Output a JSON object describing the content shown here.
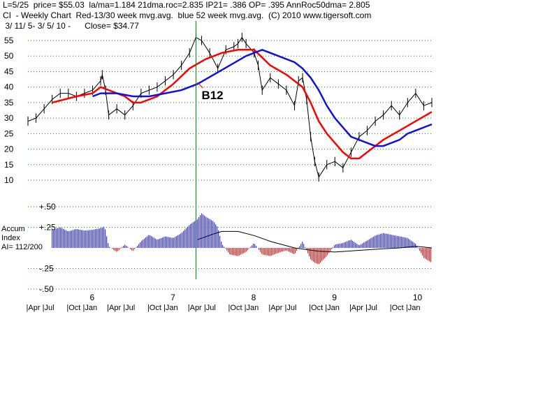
{
  "header": {
    "line1": "L=5/25  price= $55.03  la/ma=1.184 21dma.roc=2.835 IP21= .386 OP= .395 AnnRoc50dma= 2.805",
    "line2": "CI  - Weekly Chart  Red-13/30 week mvg.avg.  blue 52 week mvg.avg.  (C) 2010 www.tigersoft.com",
    "line3": " 3/ 11/ 5- 3/ 5/ 10 -      Close= $34.77"
  },
  "annotation": {
    "signal": "B12"
  },
  "panel_label": {
    "line1": "Accum",
    "line2": "Index",
    "line3": "AI= 112/200"
  },
  "colors": {
    "price": "#000000",
    "ma13": "#ff0000",
    "ma30": "#e00000",
    "ma52": "#1010e0",
    "grid": "#00a000",
    "signal_line": "#008000",
    "accum_pos": "#1010d0",
    "accum_neg": "#d00000"
  },
  "chart_data": [
    {
      "type": "line",
      "title": "CI - Weekly Chart",
      "ylim": [
        5,
        57
      ],
      "yticks": [
        10,
        15,
        20,
        25,
        30,
        35,
        40,
        45,
        50,
        55
      ],
      "xlim": [
        2005.2,
        2010.2
      ],
      "grid": true,
      "series": [
        {
          "name": "price",
          "x": [
            2005.2,
            2005.3,
            2005.4,
            2005.5,
            2005.6,
            2005.7,
            2005.8,
            2005.9,
            2006.0,
            2006.1,
            2006.12,
            2006.16,
            2006.2,
            2006.3,
            2006.4,
            2006.5,
            2006.6,
            2006.7,
            2006.8,
            2006.9,
            2007.0,
            2007.1,
            2007.2,
            2007.28,
            2007.35,
            2007.45,
            2007.55,
            2007.65,
            2007.75,
            2007.8,
            2007.85,
            2007.9,
            2008.0,
            2008.05,
            2008.1,
            2008.2,
            2008.3,
            2008.4,
            2008.5,
            2008.55,
            2008.6,
            2008.65,
            2008.7,
            2008.75,
            2008.8,
            2008.9,
            2009.0,
            2009.1,
            2009.2,
            2009.3,
            2009.4,
            2009.5,
            2009.6,
            2009.7,
            2009.8,
            2009.9,
            2010.0,
            2010.1,
            2010.2
          ],
          "values": [
            29,
            30,
            33,
            36,
            38,
            38,
            37,
            38,
            39,
            42,
            44,
            39,
            31,
            33,
            31,
            34,
            38,
            39,
            40,
            42,
            44,
            47,
            51,
            56,
            55,
            51,
            46,
            52,
            53,
            54,
            56,
            54,
            51,
            47,
            39,
            43,
            41,
            39,
            34,
            42,
            43,
            36,
            24,
            16,
            11,
            15,
            16,
            14,
            19,
            24,
            26,
            29,
            31,
            34,
            31,
            35,
            38,
            34,
            35
          ]
        },
        {
          "name": "Red-13/30 week mvg.avg.",
          "x": [
            2005.5,
            2005.8,
            2006.0,
            2006.1,
            2006.2,
            2006.4,
            2006.5,
            2006.6,
            2006.8,
            2007.0,
            2007.2,
            2007.4,
            2007.6,
            2007.8,
            2008.0,
            2008.2,
            2008.4,
            2008.6,
            2008.7,
            2008.8,
            2008.9,
            2009.0,
            2009.1,
            2009.2,
            2009.3,
            2009.4,
            2009.6,
            2009.8,
            2010.0,
            2010.2
          ],
          "values": [
            35,
            37,
            38,
            40,
            39,
            37,
            35,
            35,
            37,
            41,
            46,
            49,
            51,
            52,
            52,
            47,
            44,
            40,
            35,
            29,
            25,
            22,
            19,
            17,
            17,
            19,
            23,
            26,
            29,
            32
          ]
        },
        {
          "name": "blue 52 week mvg.avg.",
          "x": [
            2006.0,
            2006.1,
            2006.3,
            2006.5,
            2006.7,
            2006.9,
            2007.1,
            2007.3,
            2007.5,
            2007.7,
            2007.9,
            2008.1,
            2008.3,
            2008.5,
            2008.6,
            2008.7,
            2008.8,
            2008.9,
            2009.0,
            2009.1,
            2009.2,
            2009.4,
            2009.5,
            2009.6,
            2009.8,
            2009.9,
            2010.0,
            2010.2
          ],
          "values": [
            37,
            38,
            38,
            37,
            37,
            38,
            39,
            41,
            44,
            47,
            50,
            52,
            50,
            48,
            46,
            43,
            39,
            34,
            30,
            27,
            24,
            22,
            21,
            21,
            23,
            25,
            26,
            28
          ]
        }
      ],
      "annotations": [
        "B12"
      ]
    },
    {
      "type": "bar",
      "title": "Accum Index",
      "ylim": [
        -0.5,
        0.5
      ],
      "yticks": [
        0.5,
        0.25,
        -0.25,
        -0.5
      ],
      "xlim": [
        2005.2,
        2010.2
      ],
      "grid": true,
      "series": [
        {
          "name": "Accum Index",
          "x": [
            2005.5,
            2005.6,
            2005.7,
            2005.8,
            2005.9,
            2006.0,
            2006.1,
            2006.15,
            2006.2,
            2006.3,
            2006.4,
            2006.5,
            2006.6,
            2006.7,
            2006.8,
            2006.9,
            2007.0,
            2007.1,
            2007.2,
            2007.3,
            2007.35,
            2007.4,
            2007.5,
            2007.55,
            2007.6,
            2007.7,
            2007.8,
            2007.9,
            2008.0,
            2008.1,
            2008.2,
            2008.3,
            2008.4,
            2008.5,
            2008.6,
            2008.7,
            2008.75,
            2008.8,
            2008.9,
            2009.0,
            2009.1,
            2009.2,
            2009.3,
            2009.4,
            2009.5,
            2009.6,
            2009.7,
            2009.8,
            2009.9,
            2010.0,
            2010.1,
            2010.2
          ],
          "values": [
            0.22,
            0.25,
            0.2,
            0.23,
            0.21,
            0.22,
            0.24,
            0.26,
            0.02,
            -0.05,
            0.04,
            -0.04,
            0.08,
            0.16,
            0.1,
            0.14,
            0.12,
            0.18,
            0.28,
            0.35,
            0.42,
            0.38,
            0.32,
            0.25,
            0.05,
            -0.08,
            -0.1,
            -0.05,
            0.06,
            -0.08,
            -0.1,
            -0.06,
            -0.03,
            -0.08,
            0.08,
            -0.14,
            -0.18,
            -0.2,
            -0.1,
            0.04,
            0.06,
            0.1,
            0.03,
            0.09,
            0.15,
            0.18,
            0.16,
            0.14,
            0.12,
            0.05,
            -0.12,
            -0.18
          ]
        },
        {
          "name": "MA",
          "x": [
            2007.3,
            2007.5,
            2007.6,
            2007.8,
            2008.0,
            2008.2,
            2008.5,
            2008.8,
            2009.0,
            2009.3,
            2009.6,
            2009.8,
            2010.0,
            2010.2
          ],
          "values": [
            0.1,
            0.17,
            0.2,
            0.2,
            0.15,
            0.08,
            0.0,
            -0.04,
            -0.05,
            -0.03,
            -0.01,
            0.0,
            0.02,
            0.0
          ]
        }
      ]
    }
  ],
  "x_axis": {
    "year_labels": [
      {
        "label": "6",
        "x": 2006.0
      },
      {
        "label": "7",
        "x": 2007.0
      },
      {
        "label": "8",
        "x": 2008.0
      },
      {
        "label": "9",
        "x": 2009.0
      },
      {
        "label": "10",
        "x": 2010.0
      }
    ],
    "month_labels": [
      {
        "label": "Apr",
        "x": 2005.3
      },
      {
        "label": "Jul",
        "x": 2005.5
      },
      {
        "label": "Oct",
        "x": 2005.8
      },
      {
        "label": "Jan",
        "x": 2006.0
      },
      {
        "label": "Apr",
        "x": 2006.3
      },
      {
        "label": "Jul",
        "x": 2006.5
      },
      {
        "label": "Oct",
        "x": 2006.8
      },
      {
        "label": "Jan",
        "x": 2007.0
      },
      {
        "label": "Apr",
        "x": 2007.3
      },
      {
        "label": "Jul",
        "x": 2007.5
      },
      {
        "label": "Oct",
        "x": 2007.8
      },
      {
        "label": "Jan",
        "x": 2008.0
      },
      {
        "label": "Apr",
        "x": 2008.3
      },
      {
        "label": "Jul",
        "x": 2008.5
      },
      {
        "label": "Oct",
        "x": 2008.8
      },
      {
        "label": "Jan",
        "x": 2009.0
      },
      {
        "label": "Apr",
        "x": 2009.3
      },
      {
        "label": "Jul",
        "x": 2009.5
      },
      {
        "label": "Oct",
        "x": 2009.8
      },
      {
        "label": "Jan",
        "x": 2010.0
      }
    ]
  }
}
